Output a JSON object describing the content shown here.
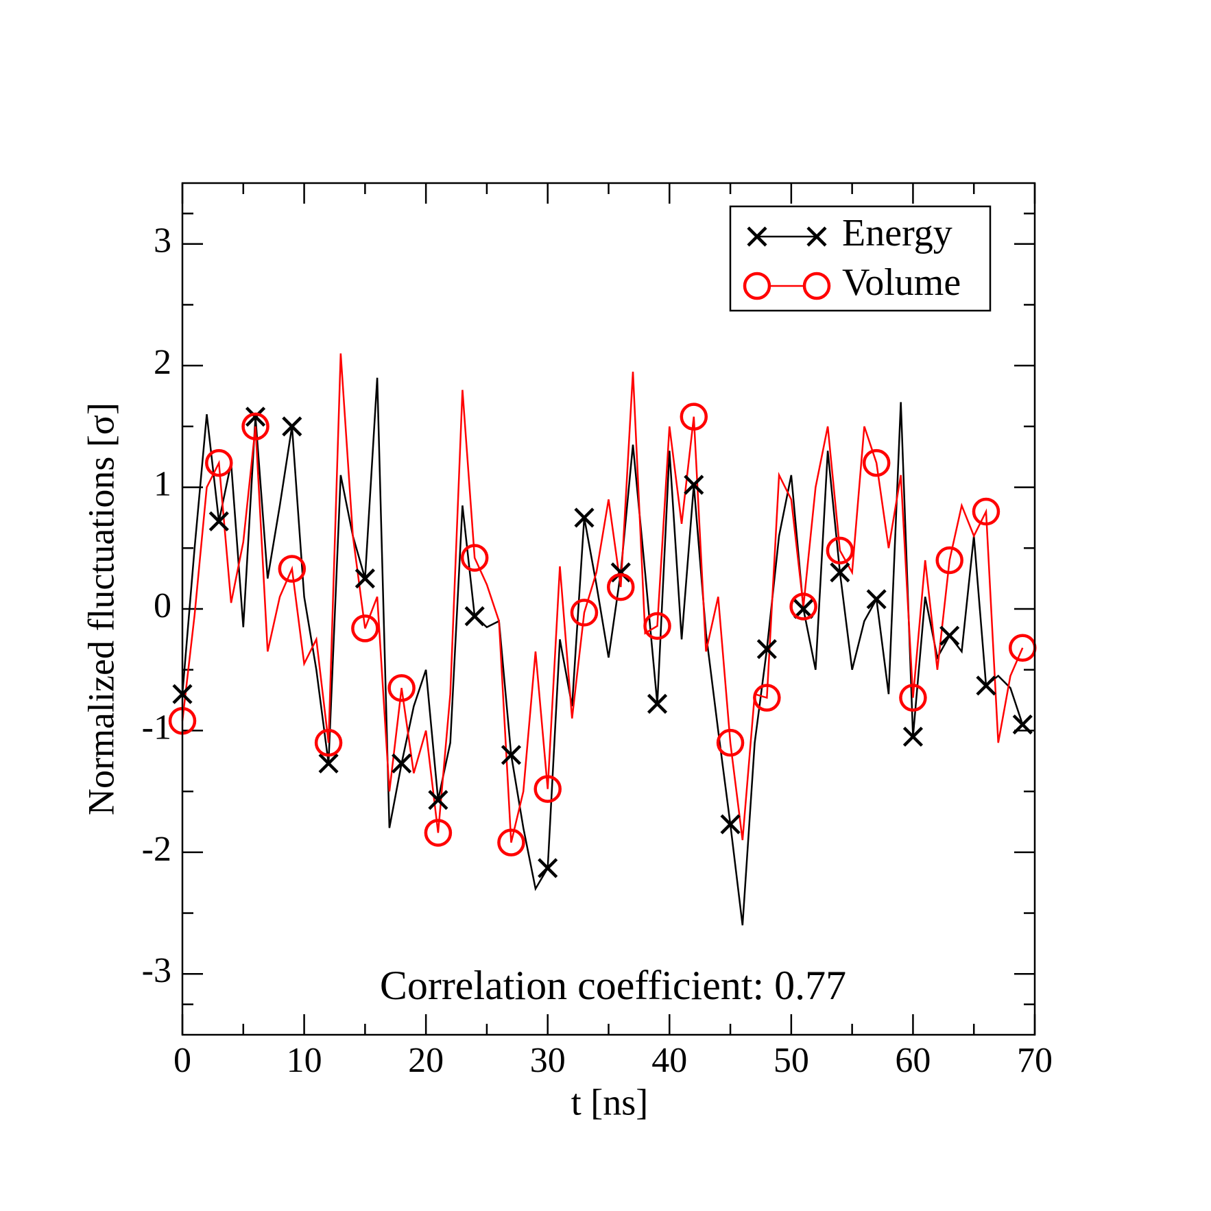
{
  "chart_data": {
    "type": "line",
    "xlabel": "t [ns]",
    "ylabel": "Normalized fluctuations [σ]",
    "annotation": "Correlation coefficient: 0.77",
    "x": [
      0,
      1,
      2,
      3,
      4,
      5,
      6,
      7,
      8,
      9,
      10,
      11,
      12,
      13,
      14,
      15,
      16,
      17,
      18,
      19,
      20,
      21,
      22,
      23,
      24,
      25,
      26,
      27,
      28,
      29,
      30,
      31,
      32,
      33,
      34,
      35,
      36,
      37,
      38,
      39,
      40,
      41,
      42,
      43,
      44,
      45,
      46,
      47,
      48,
      49,
      50,
      51,
      52,
      53,
      54,
      55,
      56,
      57,
      58,
      59,
      60,
      61,
      62,
      63,
      64,
      65,
      66,
      67,
      68,
      69
    ],
    "series": [
      {
        "name": "Energy",
        "color": "#000000",
        "marker": "x",
        "values": [
          -0.7,
          0.5,
          1.6,
          0.72,
          1.2,
          -0.15,
          1.58,
          0.25,
          0.85,
          1.5,
          0.1,
          -0.5,
          -1.27,
          1.1,
          0.6,
          0.25,
          1.9,
          -1.8,
          -1.27,
          -0.8,
          -0.5,
          -1.57,
          -1.1,
          0.85,
          -0.06,
          -0.15,
          -0.1,
          -1.2,
          -1.8,
          -2.3,
          -2.13,
          -0.25,
          -0.8,
          0.75,
          0.2,
          -0.4,
          0.3,
          1.35,
          0.3,
          -0.78,
          1.3,
          -0.25,
          1.02,
          -0.2,
          -1.0,
          -1.77,
          -2.6,
          -1.1,
          -0.33,
          0.6,
          1.1,
          0.0,
          -0.5,
          1.3,
          0.3,
          -0.5,
          -0.1,
          0.08,
          -0.7,
          1.7,
          -1.05,
          0.1,
          -0.4,
          -0.22,
          -0.35,
          0.6,
          -0.63,
          -0.55,
          -0.65,
          -0.95
        ]
      },
      {
        "name": "Volume",
        "color": "#ff0000",
        "marker": "o",
        "values": [
          -0.92,
          -0.05,
          1.0,
          1.2,
          0.05,
          0.55,
          1.5,
          -0.35,
          0.1,
          0.33,
          -0.45,
          -0.25,
          -1.1,
          2.1,
          0.6,
          -0.16,
          0.1,
          -1.5,
          -0.65,
          -1.35,
          -1.0,
          -1.84,
          -0.7,
          1.8,
          0.42,
          0.2,
          -0.1,
          -1.92,
          -1.5,
          -0.35,
          -1.48,
          0.35,
          -0.9,
          -0.03,
          0.3,
          0.9,
          0.18,
          1.95,
          -0.2,
          -0.14,
          1.5,
          0.7,
          1.58,
          -0.35,
          0.1,
          -1.1,
          -1.9,
          -0.7,
          -0.73,
          1.1,
          0.9,
          0.02,
          1.0,
          1.5,
          0.48,
          0.3,
          1.5,
          1.2,
          0.5,
          1.1,
          -0.73,
          0.4,
          -0.5,
          0.4,
          0.85,
          0.6,
          0.8,
          -1.1,
          -0.55,
          -0.32
        ]
      }
    ],
    "xlim": [
      0,
      70
    ],
    "xticks": [
      0,
      10,
      20,
      30,
      40,
      50,
      60,
      70
    ],
    "ylim": [
      -3.5,
      3.5
    ],
    "yticks": [
      -3,
      -2,
      -1,
      0,
      1,
      2,
      3
    ],
    "legend": "upper right"
  }
}
